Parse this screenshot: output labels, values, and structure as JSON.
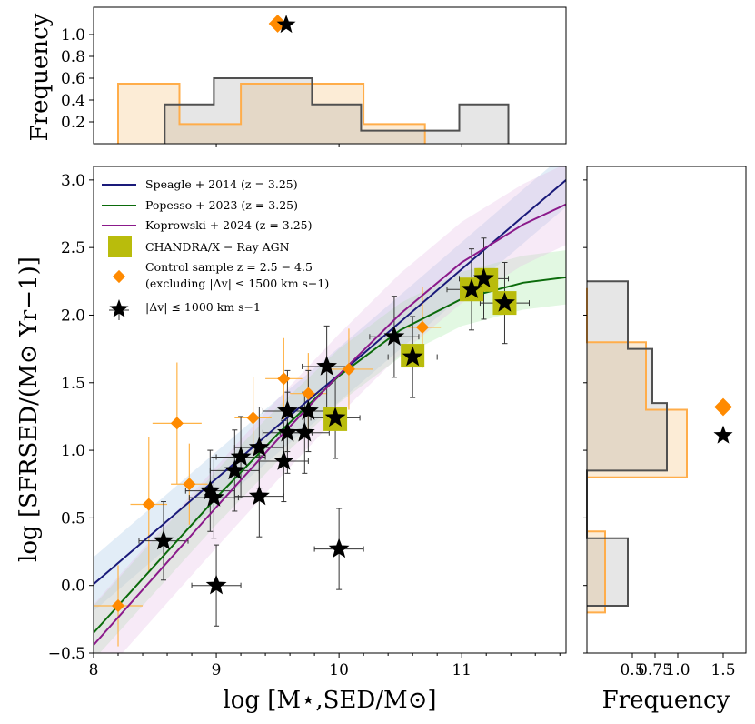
{
  "chart_data": {
    "type": "scatter",
    "main": {
      "xlabel": "log [M⋆,SED/M⊙]",
      "ylabel": "log [SFRSED/(M⊙ Yr−1)]",
      "xlim": [
        8.0,
        11.85
      ],
      "ylim": [
        -0.5,
        3.1
      ],
      "xticks": [
        "8",
        "9",
        "10",
        "11"
      ],
      "yticks": [
        "−0.5",
        "0.0",
        "0.5",
        "1.0",
        "1.5",
        "2.0",
        "2.5",
        "3.0"
      ],
      "legend_placement": "upper-left",
      "legend": [
        {
          "label": "Speagle + 2014 (z = 3.25)",
          "color": "#1a1a7a",
          "kind": "line"
        },
        {
          "label": "Popesso + 2023 (z = 3.25)",
          "color": "#0b6b0b",
          "kind": "line"
        },
        {
          "label": "Koprowski + 2024 (z = 3.25)",
          "color": "#8b1a8b",
          "kind": "line"
        },
        {
          "label": "CHANDRA/X − Ray AGN",
          "color": "#b9bc0c",
          "kind": "square"
        },
        {
          "label": "Control sample z = 2.5 − 4.5",
          "label2": "(excluding |Δv| ≤ 1500 km s−1)",
          "color": "#ff8a00",
          "kind": "diamond"
        },
        {
          "label": "|Δv| ≤ 1000 km s−1",
          "color": "#000000",
          "kind": "star"
        }
      ],
      "relations": [
        {
          "name": "Speagle + 2014",
          "color": "#1a1a7a",
          "band": "#9ec4e6",
          "x": [
            8.0,
            8.5,
            9.0,
            9.5,
            10.0,
            10.5,
            11.0,
            11.5,
            11.85
          ],
          "y": [
            0.01,
            0.4,
            0.79,
            1.18,
            1.56,
            1.95,
            2.34,
            2.73,
            3.0
          ],
          "lo": [
            -0.19,
            0.2,
            0.59,
            0.98,
            1.36,
            1.75,
            2.14,
            2.53,
            2.8
          ],
          "hi": [
            0.21,
            0.6,
            0.99,
            1.38,
            1.76,
            2.15,
            2.54,
            2.93,
            3.2
          ]
        },
        {
          "name": "Popesso + 2023",
          "color": "#0b6b0b",
          "band": "#9fe89f",
          "x": [
            8.0,
            8.5,
            9.0,
            9.5,
            10.0,
            10.5,
            11.0,
            11.5,
            11.85
          ],
          "y": [
            -0.35,
            0.15,
            0.65,
            1.12,
            1.55,
            1.89,
            2.12,
            2.24,
            2.28
          ],
          "lo": [
            -0.55,
            -0.05,
            0.45,
            0.92,
            1.35,
            1.69,
            1.92,
            2.04,
            2.08
          ],
          "hi": [
            -0.15,
            0.35,
            0.85,
            1.32,
            1.75,
            2.09,
            2.32,
            2.44,
            2.48
          ]
        },
        {
          "name": "Koprowski + 2024",
          "color": "#8b1a8b",
          "band": "#e6b8e6",
          "x": [
            8.0,
            8.5,
            9.0,
            9.5,
            10.0,
            10.5,
            11.0,
            11.5,
            11.85
          ],
          "y": [
            -0.44,
            0.07,
            0.58,
            1.08,
            1.56,
            2.01,
            2.39,
            2.67,
            2.82
          ],
          "lo": [
            -0.74,
            -0.23,
            0.28,
            0.78,
            1.26,
            1.71,
            2.09,
            2.37,
            2.52
          ],
          "hi": [
            -0.14,
            0.37,
            0.88,
            1.38,
            1.86,
            2.31,
            2.69,
            2.97,
            3.12
          ]
        }
      ],
      "agn": [
        {
          "x": 9.97,
          "y": 1.23
        },
        {
          "x": 10.6,
          "y": 1.7
        },
        {
          "x": 11.08,
          "y": 2.19
        },
        {
          "x": 11.2,
          "y": 2.26
        },
        {
          "x": 11.35,
          "y": 2.09
        }
      ],
      "control": [
        {
          "x": 8.2,
          "y": -0.15,
          "xe": 0.2,
          "ye": 0.3
        },
        {
          "x": 8.45,
          "y": 0.6,
          "xe": 0.15,
          "ye": 0.5
        },
        {
          "x": 8.68,
          "y": 1.2,
          "xe": 0.2,
          "ye": 0.45
        },
        {
          "x": 8.78,
          "y": 0.75,
          "xe": 0.15,
          "ye": 0.3
        },
        {
          "x": 9.3,
          "y": 1.24,
          "xe": 0.15,
          "ye": 0.3
        },
        {
          "x": 9.55,
          "y": 1.53,
          "xe": 0.15,
          "ye": 0.3
        },
        {
          "x": 9.75,
          "y": 1.42,
          "xe": 0.15,
          "ye": 0.3
        },
        {
          "x": 10.08,
          "y": 1.6,
          "xe": 0.2,
          "ye": 0.3
        },
        {
          "x": 10.68,
          "y": 1.91,
          "xe": 0.15,
          "ye": 0.3
        }
      ],
      "targets": [
        {
          "x": 8.57,
          "y": 0.33,
          "xe": 0.2,
          "ye": 0.29
        },
        {
          "x": 9.0,
          "y": 0.0,
          "xe": 0.2,
          "ye": 0.3
        },
        {
          "x": 8.95,
          "y": 0.7,
          "xe": 0.2,
          "ye": 0.3
        },
        {
          "x": 8.98,
          "y": 0.65,
          "xe": 0.2,
          "ye": 0.3
        },
        {
          "x": 9.15,
          "y": 0.85,
          "xe": 0.2,
          "ye": 0.3
        },
        {
          "x": 9.2,
          "y": 0.95,
          "xe": 0.2,
          "ye": 0.3
        },
        {
          "x": 9.35,
          "y": 1.02,
          "xe": 0.2,
          "ye": 0.3
        },
        {
          "x": 9.35,
          "y": 0.66,
          "xe": 0.2,
          "ye": 0.3
        },
        {
          "x": 9.55,
          "y": 0.92,
          "xe": 0.2,
          "ye": 0.3
        },
        {
          "x": 9.58,
          "y": 1.13,
          "xe": 0.2,
          "ye": 0.3
        },
        {
          "x": 9.58,
          "y": 1.29,
          "xe": 0.2,
          "ye": 0.3
        },
        {
          "x": 9.72,
          "y": 1.13,
          "xe": 0.2,
          "ye": 0.3
        },
        {
          "x": 9.75,
          "y": 1.29,
          "xe": 0.2,
          "ye": 0.3
        },
        {
          "x": 9.9,
          "y": 1.62,
          "xe": 0.2,
          "ye": 0.3
        },
        {
          "x": 9.97,
          "y": 1.24,
          "xe": 0.2,
          "ye": 0.3
        },
        {
          "x": 10.0,
          "y": 0.27,
          "xe": 0.2,
          "ye": 0.3
        },
        {
          "x": 10.45,
          "y": 1.84,
          "xe": 0.2,
          "ye": 0.3
        },
        {
          "x": 10.6,
          "y": 1.69,
          "xe": 0.2,
          "ye": 0.3
        },
        {
          "x": 11.08,
          "y": 2.19,
          "xe": 0.2,
          "ye": 0.3
        },
        {
          "x": 11.18,
          "y": 2.27,
          "xe": 0.2,
          "ye": 0.3
        },
        {
          "x": 11.35,
          "y": 2.09,
          "xe": 0.2,
          "ye": 0.3
        }
      ]
    },
    "top_hist": {
      "ylabel": "Frequency",
      "ylim": [
        0,
        1.25
      ],
      "yticks": [
        "0.2",
        "0.4",
        "0.6",
        "0.8",
        "1.0"
      ],
      "orange_edges": [
        8.2,
        8.7,
        9.2,
        9.7,
        10.2,
        10.7
      ],
      "orange_freq": [
        0.55,
        0.18,
        0.55,
        0.55,
        0.18
      ],
      "gray_edges": [
        8.58,
        8.98,
        9.38,
        9.78,
        10.18,
        10.58,
        10.98,
        11.38
      ],
      "gray_freq": [
        0.36,
        0.6,
        0.6,
        0.36,
        0.12,
        0.12,
        0.36
      ],
      "marker_diamond": {
        "x": 9.5,
        "y": 1.1
      },
      "marker_star": {
        "x": 9.57,
        "y": 1.09
      }
    },
    "right_hist": {
      "xlabel": "Frequency",
      "xlim": [
        0,
        1.75
      ],
      "xticks": [
        "0.5",
        "0.75",
        "1.0",
        "1.5"
      ],
      "orange_edges": [
        -0.2,
        0.4,
        0.8,
        1.3,
        1.8,
        2.2
      ],
      "orange_freq": [
        0.2,
        0.0,
        1.1,
        0.65,
        0.0
      ],
      "gray_edges": [
        -0.15,
        0.35,
        0.85,
        1.35,
        1.75,
        2.25
      ],
      "gray_freq": [
        0.45,
        0.0,
        0.88,
        0.72,
        0.45
      ],
      "marker_diamond": {
        "x": 1.5,
        "y": 1.32
      },
      "marker_star": {
        "x": 1.5,
        "y": 1.11
      }
    }
  }
}
